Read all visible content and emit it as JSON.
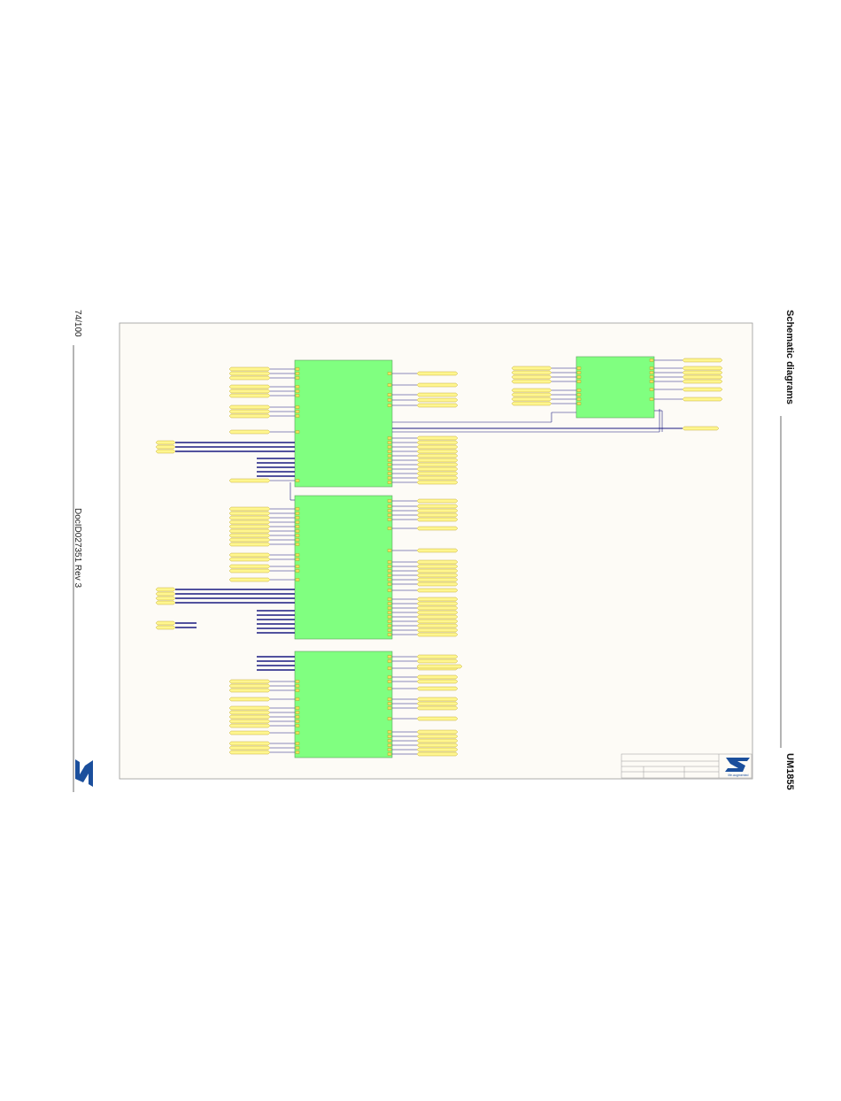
{
  "header": {
    "section": "Schematic diagrams",
    "doc_number": "UM1855"
  },
  "footer": {
    "page": "74/100",
    "doc_id": "DocID027351 Rev 3"
  },
  "logo": {
    "tagline": "life.augmented"
  }
}
